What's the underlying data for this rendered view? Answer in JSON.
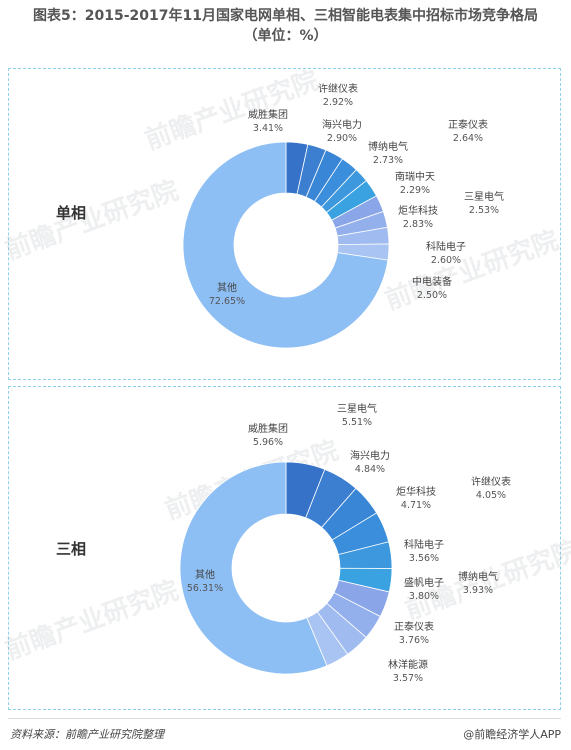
{
  "title_line1": "图表5：2015-2017年11月国家电网单相、三相智能电表集中招标市场竞争格局",
  "title_line2": "（单位：%）",
  "source": "资料来源：前瞻产业研究院整理",
  "brand": "@前瞻经济学人APP",
  "watermark": "前瞻产业研究院",
  "chart_data": [
    {
      "type": "pie",
      "name": "单相",
      "slices": [
        {
          "label": "威胜集团",
          "value": 3.41
        },
        {
          "label": "许继仪表",
          "value": 2.92
        },
        {
          "label": "海兴电力",
          "value": 2.9
        },
        {
          "label": "博纳电气",
          "value": 2.73
        },
        {
          "label": "南瑞中天",
          "value": 2.29
        },
        {
          "label": "炬华科技",
          "value": 2.83
        },
        {
          "label": "正泰仪表",
          "value": 2.64
        },
        {
          "label": "三星电气",
          "value": 2.53
        },
        {
          "label": "科陆电子",
          "value": 2.6
        },
        {
          "label": "中电装备",
          "value": 2.5
        },
        {
          "label": "其他",
          "value": 72.65
        }
      ],
      "value_labels": [
        "3.41%",
        "2.92%",
        "2.90%",
        "2.73%",
        "2.29%",
        "2.83%",
        "2.64%",
        "2.53%",
        "2.60%",
        "2.50%",
        "72.65%"
      ]
    },
    {
      "type": "pie",
      "name": "三相",
      "slices": [
        {
          "label": "威胜集团",
          "value": 5.96
        },
        {
          "label": "三星电气",
          "value": 5.51
        },
        {
          "label": "海兴电力",
          "value": 4.84
        },
        {
          "label": "炬华科技",
          "value": 4.71
        },
        {
          "label": "许继仪表",
          "value": 4.05
        },
        {
          "label": "科陆电子",
          "value": 3.56
        },
        {
          "label": "博纳电气",
          "value": 3.93
        },
        {
          "label": "盛帆电子",
          "value": 3.8
        },
        {
          "label": "正泰仪表",
          "value": 3.76
        },
        {
          "label": "林洋能源",
          "value": 3.57
        },
        {
          "label": "其他",
          "value": 56.31
        }
      ],
      "value_labels": [
        "5.96%",
        "5.51%",
        "4.84%",
        "4.71%",
        "4.05%",
        "3.56%",
        "3.93%",
        "3.80%",
        "3.76%",
        "3.57%",
        "56.31%"
      ]
    }
  ]
}
